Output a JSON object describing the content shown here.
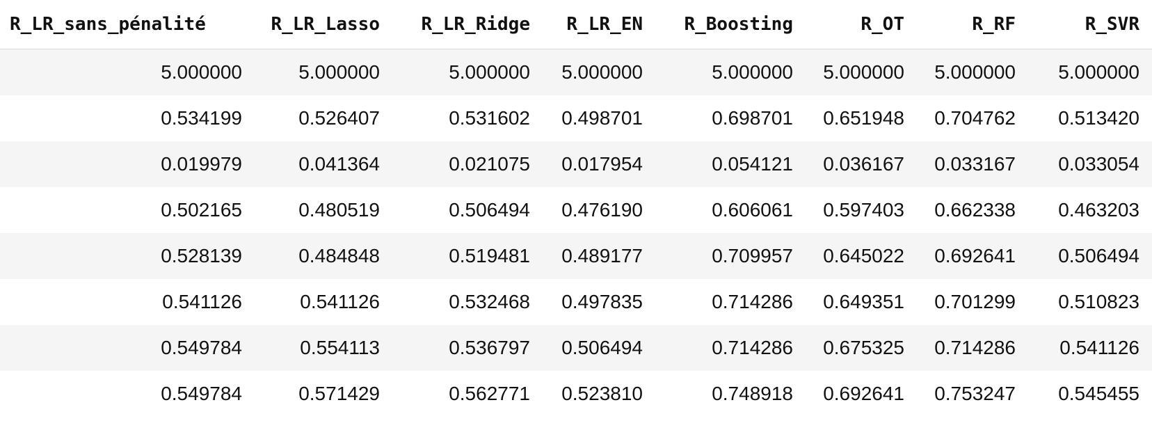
{
  "table": {
    "headers": [
      "R_LR_sans_pénalité",
      "R_LR_Lasso",
      "R_LR_Ridge",
      "R_LR_EN",
      "R_Boosting",
      "R_OT",
      "R_RF",
      "R_SVR"
    ],
    "rows": [
      [
        "5.000000",
        "5.000000",
        "5.000000",
        "5.000000",
        "5.000000",
        "5.000000",
        "5.000000",
        "5.000000"
      ],
      [
        "0.534199",
        "0.526407",
        "0.531602",
        "0.498701",
        "0.698701",
        "0.651948",
        "0.704762",
        "0.513420"
      ],
      [
        "0.019979",
        "0.041364",
        "0.021075",
        "0.017954",
        "0.054121",
        "0.036167",
        "0.033167",
        "0.033054"
      ],
      [
        "0.502165",
        "0.480519",
        "0.506494",
        "0.476190",
        "0.606061",
        "0.597403",
        "0.662338",
        "0.463203"
      ],
      [
        "0.528139",
        "0.484848",
        "0.519481",
        "0.489177",
        "0.709957",
        "0.645022",
        "0.692641",
        "0.506494"
      ],
      [
        "0.541126",
        "0.541126",
        "0.532468",
        "0.497835",
        "0.714286",
        "0.649351",
        "0.701299",
        "0.510823"
      ],
      [
        "0.549784",
        "0.554113",
        "0.536797",
        "0.506494",
        "0.714286",
        "0.675325",
        "0.714286",
        "0.541126"
      ],
      [
        "0.549784",
        "0.571429",
        "0.562771",
        "0.523810",
        "0.748918",
        "0.692641",
        "0.753247",
        "0.545455"
      ]
    ]
  }
}
